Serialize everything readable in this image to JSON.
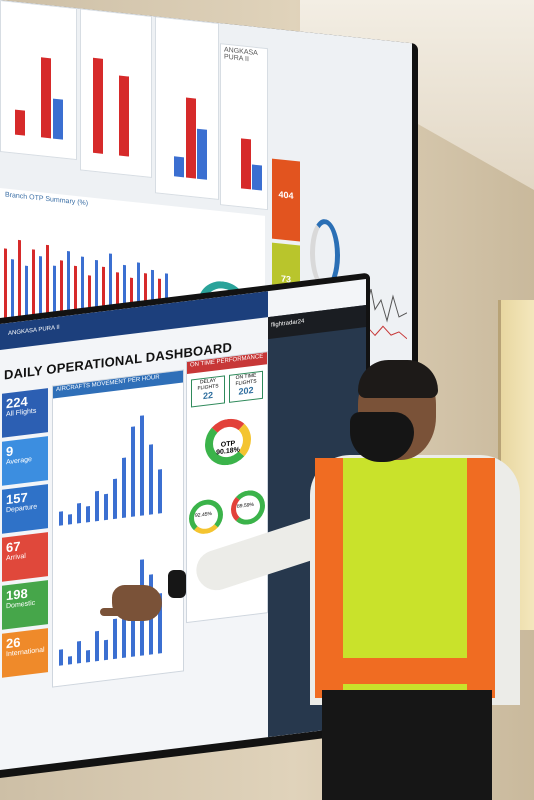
{
  "top_screen": {
    "brand": "ANGKASA PURA II",
    "branch_summary_title": "Branch OTP Summary (%)",
    "counter_1": "404",
    "counter_2": "73"
  },
  "dashboard": {
    "brand": "ANGKASA PURA II",
    "title": "DAILY OPERATIONAL DASHBOARD",
    "stats": [
      {
        "value": "224",
        "label": "All Flights",
        "color": "#2c5fb3"
      },
      {
        "value": "9",
        "label": "Average",
        "color": "#3c8ee0"
      },
      {
        "value": "157",
        "label": "Departure",
        "color": "#2f72c8"
      },
      {
        "value": "67",
        "label": "Arrival",
        "color": "#e0483b"
      },
      {
        "value": "198",
        "label": "Domestic",
        "color": "#46a64a"
      },
      {
        "value": "26",
        "label": "International",
        "color": "#ef8a2a"
      }
    ],
    "movement_panel_title": "AIRCRAFTS MOVEMENT PER HOUR",
    "otp_panel_title": "ON TIME PERFORMANCE",
    "delay_label": "DELAY FLIGHTS",
    "delay_value": "22",
    "ontime_label": "ON TIME FLIGHTS",
    "ontime_value": "202",
    "otp_label": "OTP",
    "otp_value": "90.18%",
    "otp_small_1": "92.45%",
    "otp_small_2": "89.59%",
    "colors": {
      "header": "#1c3f7c",
      "panel": "#2f6fb8",
      "otp_red": "#c73737"
    }
  },
  "map_panel": {
    "title": "flightradar24"
  }
}
